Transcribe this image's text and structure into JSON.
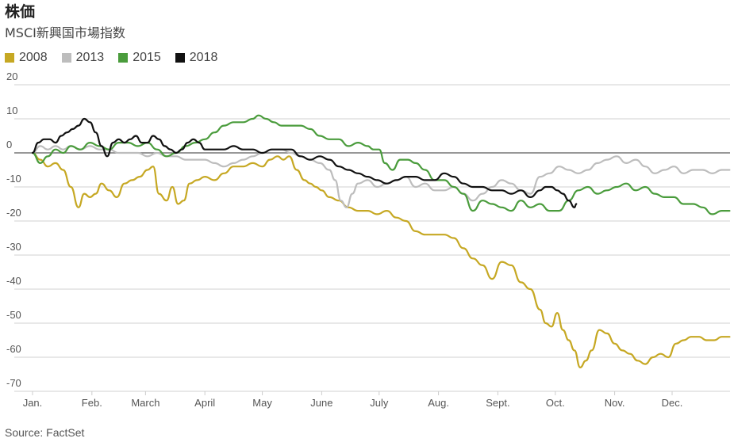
{
  "header": {
    "title": "株価",
    "subtitle": "MSCI新興国市場指数"
  },
  "source": "Source: FactSet",
  "chart_data": {
    "type": "line",
    "title": "株価",
    "subtitle": "MSCI新興国市場指数",
    "xlabel": "",
    "ylabel": "",
    "xlim": [
      0,
      364
    ],
    "ylim": [
      -70,
      20
    ],
    "grid": true,
    "legend_position": "top-left",
    "y_ticks": [
      20,
      10,
      0,
      -10,
      -20,
      -30,
      -40,
      -50,
      -60,
      -70
    ],
    "y_tick_labels": [
      "20",
      "10",
      "0",
      "-10",
      "-20",
      "-30",
      "-40",
      "-50",
      "-60",
      "-70"
    ],
    "x_ticks": [
      0,
      31,
      59,
      90,
      120,
      151,
      181,
      212,
      243,
      273,
      304,
      334
    ],
    "x_tick_labels": [
      "Jan.",
      "Feb.",
      "March",
      "April",
      "May",
      "June",
      "July",
      "Aug.",
      "Sept.",
      "Oct.",
      "Nov.",
      "Dec."
    ],
    "series": [
      {
        "name": "2008",
        "color": "#c6a823",
        "x": [
          0,
          4,
          8,
          12,
          16,
          20,
          24,
          27,
          30,
          33,
          36,
          40,
          44,
          48,
          52,
          56,
          60,
          63,
          66,
          70,
          73,
          76,
          79,
          82,
          86,
          90,
          95,
          100,
          105,
          110,
          115,
          120,
          124,
          128,
          131,
          134,
          138,
          142,
          145,
          148,
          151,
          155,
          160,
          165,
          170,
          175,
          180,
          185,
          190,
          195,
          200,
          205,
          210,
          215,
          220,
          225,
          230,
          235,
          240,
          245,
          250,
          255,
          260,
          265,
          268,
          271,
          274,
          277,
          280,
          283,
          286,
          289,
          292,
          296,
          300,
          304,
          308,
          312,
          316,
          320,
          324,
          328,
          332,
          336,
          340,
          344,
          348,
          352,
          356,
          360,
          364
        ],
        "values": [
          0,
          -2,
          -4,
          -3,
          -5,
          -10,
          -16,
          -12,
          -13,
          -12,
          -9,
          -11,
          -13,
          -9,
          -8,
          -7,
          -5,
          -4,
          -12,
          -14,
          -10,
          -15,
          -14,
          -9,
          -8,
          -7,
          -8,
          -6,
          -4,
          -4,
          -3,
          -4,
          -2,
          -1,
          -2,
          -1,
          -5,
          -8,
          -9,
          -10,
          -11,
          -13,
          -14,
          -16,
          -17,
          -17,
          -18,
          -17,
          -19,
          -20,
          -23,
          -24,
          -24,
          -24,
          -25,
          -28,
          -31,
          -33,
          -37,
          -32,
          -33,
          -38,
          -40,
          -46,
          -50,
          -51,
          -47,
          -52,
          -55,
          -58,
          -63,
          -61,
          -58,
          -52,
          -53,
          -56,
          -58,
          -59,
          -61,
          -62,
          -60,
          -59,
          -60,
          -56,
          -55,
          -54,
          -54,
          -55,
          -55,
          -54,
          -54
        ]
      },
      {
        "name": "2013",
        "color": "#bdbdbd",
        "x": [
          0,
          4,
          8,
          12,
          16,
          20,
          25,
          30,
          35,
          40,
          45,
          50,
          55,
          60,
          65,
          70,
          75,
          80,
          85,
          90,
          95,
          100,
          105,
          110,
          115,
          120,
          125,
          130,
          135,
          140,
          145,
          150,
          155,
          158,
          161,
          164,
          167,
          170,
          175,
          180,
          185,
          190,
          195,
          200,
          205,
          210,
          215,
          220,
          225,
          230,
          235,
          240,
          245,
          250,
          255,
          260,
          265,
          270,
          275,
          280,
          285,
          290,
          295,
          300,
          305,
          310,
          315,
          320,
          325,
          330,
          335,
          340,
          345,
          350,
          355,
          360,
          364
        ],
        "values": [
          0,
          2,
          1,
          2,
          1,
          2,
          1,
          2,
          1,
          1,
          0,
          0,
          0,
          -1,
          0,
          -1,
          -1,
          -2,
          -2,
          -2,
          -3,
          -4,
          -3,
          -2,
          -1,
          0,
          1,
          1,
          0,
          -1,
          -2,
          -3,
          -5,
          -8,
          -14,
          -16,
          -12,
          -9,
          -8,
          -10,
          -9,
          -8,
          -7,
          -10,
          -9,
          -11,
          -11,
          -10,
          -12,
          -14,
          -12,
          -10,
          -8,
          -9,
          -11,
          -12,
          -7,
          -6,
          -4,
          -5,
          -6,
          -5,
          -3,
          -2,
          -1,
          -3,
          -2,
          -4,
          -6,
          -5,
          -4,
          -6,
          -5,
          -5,
          -6,
          -5,
          -5
        ]
      },
      {
        "name": "2015",
        "color": "#4a9c3c",
        "x": [
          0,
          4,
          8,
          12,
          16,
          20,
          25,
          30,
          35,
          40,
          45,
          50,
          55,
          60,
          65,
          70,
          75,
          80,
          85,
          90,
          95,
          100,
          105,
          110,
          115,
          118,
          122,
          126,
          130,
          135,
          140,
          145,
          150,
          155,
          160,
          165,
          170,
          175,
          178,
          181,
          184,
          188,
          192,
          196,
          200,
          205,
          210,
          215,
          220,
          225,
          230,
          235,
          240,
          245,
          250,
          255,
          260,
          265,
          270,
          275,
          280,
          285,
          290,
          295,
          300,
          305,
          310,
          315,
          320,
          325,
          330,
          335,
          340,
          345,
          350,
          355,
          360,
          364
        ],
        "values": [
          0,
          -3,
          -1,
          1,
          0,
          2,
          1,
          3,
          2,
          1,
          3,
          3,
          2,
          3,
          1,
          -1,
          0,
          2,
          3,
          4,
          6,
          8,
          9,
          9,
          10,
          11,
          10,
          9,
          8,
          8,
          8,
          7,
          5,
          4,
          4,
          2,
          3,
          2,
          1,
          1,
          -3,
          -5,
          -2,
          -2,
          -3,
          -5,
          -8,
          -8,
          -10,
          -12,
          -17,
          -14,
          -15,
          -16,
          -17,
          -14,
          -16,
          -15,
          -17,
          -17,
          -14,
          -11,
          -10,
          -12,
          -11,
          -10,
          -9,
          -11,
          -10,
          -12,
          -13,
          -13,
          -15,
          -15,
          -16,
          -18,
          -17,
          -17
        ]
      },
      {
        "name": "2018",
        "color": "#111111",
        "x": [
          0,
          3,
          6,
          9,
          12,
          15,
          18,
          21,
          24,
          27,
          30,
          33,
          36,
          39,
          42,
          45,
          48,
          51,
          54,
          57,
          60,
          63,
          66,
          69,
          72,
          75,
          78,
          81,
          84,
          87,
          90,
          95,
          100,
          105,
          110,
          115,
          120,
          125,
          130,
          135,
          140,
          145,
          150,
          155,
          160,
          165,
          170,
          175,
          180,
          185,
          190,
          195,
          200,
          205,
          210,
          215,
          220,
          225,
          230,
          235,
          240,
          245,
          250,
          255,
          260,
          265,
          268,
          271,
          274,
          277,
          280,
          283,
          284
        ],
        "values": [
          0,
          3,
          4,
          4,
          3,
          5,
          6,
          7,
          8,
          10,
          9,
          6,
          2,
          -1,
          3,
          4,
          3,
          4,
          5,
          3,
          3,
          5,
          4,
          2,
          1,
          0,
          1,
          3,
          4,
          3,
          1,
          1,
          1,
          2,
          1,
          1,
          0,
          1,
          1,
          1,
          -1,
          -2,
          -1,
          -2,
          -4,
          -5,
          -6,
          -7,
          -8,
          -9,
          -8,
          -7,
          -7,
          -8,
          -8,
          -6,
          -7,
          -9,
          -10,
          -10,
          -11,
          -11,
          -12,
          -11,
          -13,
          -11,
          -10,
          -10,
          -11,
          -12,
          -14,
          -16,
          -15
        ]
      }
    ]
  }
}
